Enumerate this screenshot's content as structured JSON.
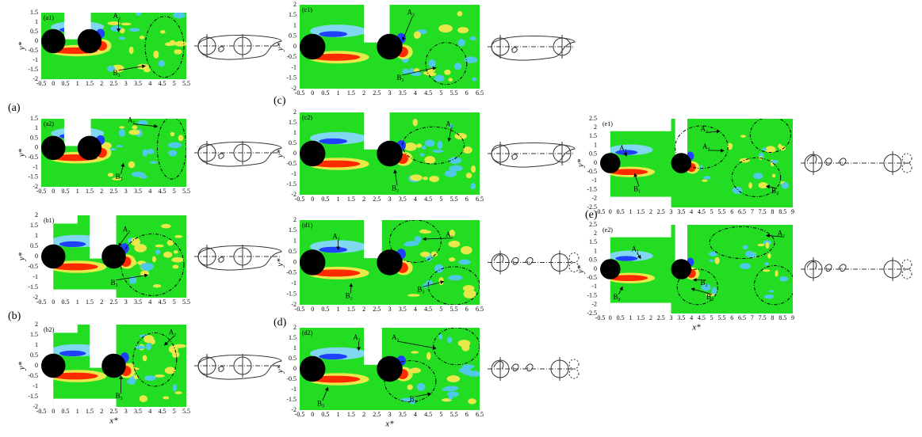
{
  "groups": [
    {
      "label": "(a)",
      "y_label": "y*",
      "xticks": [
        -0.5,
        0,
        0.5,
        1,
        1.5,
        2,
        2.5,
        3,
        3.5,
        4,
        4.5,
        5,
        5.5
      ],
      "yticks": [
        -2,
        -1.5,
        -1,
        -0.5,
        0,
        0.5,
        1,
        1.5
      ],
      "panels": [
        {
          "label": "(a1)",
          "annotations": [
            "A₂",
            "B₃"
          ]
        },
        {
          "label": "(a2)",
          "annotations": [
            "A₂",
            "B₃"
          ]
        }
      ]
    },
    {
      "label": "(b)",
      "x_label": "x*",
      "y_label": "y*",
      "xticks": [
        -0.5,
        0,
        0.5,
        1,
        1.5,
        2,
        2.5,
        3,
        3.5,
        4,
        4.5,
        5,
        5.5
      ],
      "yticks": [
        -2,
        -1.5,
        -1,
        -0.5,
        0,
        0.5,
        1,
        1.5,
        2
      ],
      "panels": [
        {
          "label": "(b1)",
          "annotations": [
            "A₂",
            "B₃"
          ]
        },
        {
          "label": "(b2)",
          "annotations": [
            "A₂",
            "B₃"
          ]
        }
      ]
    },
    {
      "label": "(c)",
      "y_label": "y*",
      "xticks": [
        -0.5,
        0,
        0.5,
        1,
        1.5,
        2,
        2.5,
        3,
        3.5,
        4,
        4.5,
        5,
        5.5,
        6,
        6.5
      ],
      "yticks": [
        -2,
        -1.5,
        -1,
        -0.5,
        0,
        0.5,
        1,
        1.5,
        2
      ],
      "panels": [
        {
          "label": "(c1)",
          "annotations": [
            "A₃",
            "B₃"
          ]
        },
        {
          "label": "(c2)",
          "annotations": [
            "A₂",
            "B₂"
          ]
        }
      ]
    },
    {
      "label": "(d)",
      "x_label": "x*",
      "y_label": "y*",
      "xticks": [
        -0.5,
        0,
        0.5,
        1,
        1.5,
        2,
        2.5,
        3,
        3.5,
        4,
        4.5,
        5,
        5.5,
        6,
        6.5
      ],
      "yticks": [
        -2,
        -1.5,
        -1,
        -0.5,
        0,
        0.5,
        1,
        1.5,
        2
      ],
      "panels": [
        {
          "label": "(d1)",
          "annotations": [
            "A₁",
            "A₂",
            "B₂",
            "B₃"
          ]
        },
        {
          "label": "(d2)",
          "annotations": [
            "A₁",
            "A₂",
            "B₀",
            "B₃"
          ]
        }
      ]
    },
    {
      "label": "(e)",
      "x_label": "x*",
      "y_label": "y*",
      "xticks": [
        -0.5,
        0,
        0.5,
        1,
        1.5,
        2,
        2.5,
        3,
        3.5,
        4,
        4.5,
        5,
        5.5,
        6,
        6.5,
        7,
        7.5,
        8,
        8.5,
        9
      ],
      "yticks": [
        -2.5,
        -2,
        -1.5,
        -1,
        -0.5,
        0,
        0.5,
        1,
        1.5,
        2,
        2.5
      ],
      "panels": [
        {
          "label": "(e1)",
          "annotations": [
            "A₁",
            "A₂",
            "A₃",
            "B₁",
            "B₄"
          ]
        },
        {
          "label": "(e2)",
          "annotations": [
            "A₁",
            "A₂",
            "B₀",
            "B₂",
            "B₃"
          ]
        }
      ]
    }
  ]
}
